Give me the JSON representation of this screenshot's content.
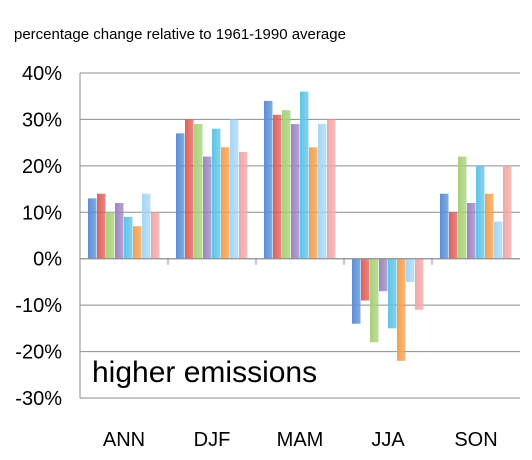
{
  "chart_data": {
    "type": "bar",
    "subtitle": "percentage change relative to 1961-1990 average",
    "annotation": "higher emissions",
    "categories": [
      "ANN",
      "DJF",
      "MAM",
      "JJA",
      "SON"
    ],
    "ylim": [
      -30,
      40
    ],
    "yticks": [
      40,
      30,
      20,
      10,
      0,
      -10,
      -20,
      -30
    ],
    "ytick_labels": [
      "40%",
      "30%",
      "20%",
      "10%",
      "0%",
      "-10%",
      "-20%",
      "-30%"
    ],
    "grid": true,
    "legend": "none",
    "series": [
      {
        "color": "#5b8fd6",
        "values": [
          13,
          27,
          34,
          -14,
          14
        ]
      },
      {
        "color": "#e0605a",
        "values": [
          14,
          30,
          31,
          -9,
          10
        ]
      },
      {
        "color": "#a9d17a",
        "values": [
          10,
          29,
          32,
          -18,
          22
        ]
      },
      {
        "color": "#9d86c4",
        "values": [
          12,
          22,
          29,
          -7,
          12
        ]
      },
      {
        "color": "#5fc4e6",
        "values": [
          9,
          28,
          36,
          -15,
          20
        ]
      },
      {
        "color": "#f5a04f",
        "values": [
          7,
          24,
          24,
          -22,
          14
        ]
      },
      {
        "color": "#a8d6f3",
        "values": [
          14,
          30,
          29,
          -5,
          8
        ]
      },
      {
        "color": "#f2a8a6",
        "values": [
          10,
          23,
          30,
          -11,
          20
        ]
      }
    ]
  }
}
